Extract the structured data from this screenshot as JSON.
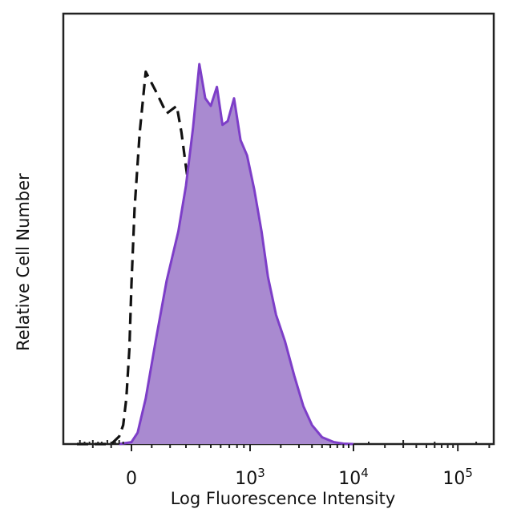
{
  "chart_data": {
    "type": "area",
    "xlabel": "Log Fluorescence Intensity",
    "ylabel": "Relative Cell Number",
    "x_scale": "biexponential (linear near 0, logarithmic above 10^2)",
    "x_ticks": [
      {
        "value": 0,
        "base": "0",
        "exp": ""
      },
      {
        "value": 1000,
        "base": "10",
        "exp": "3"
      },
      {
        "value": 10000,
        "base": "10",
        "exp": "4"
      },
      {
        "value": 100000,
        "base": "10",
        "exp": "5"
      }
    ],
    "xlim": [
      -300,
      250000
    ],
    "ylim": [
      0,
      1
    ],
    "grid": false,
    "legend": "none",
    "series": [
      {
        "style": "dashed",
        "color": "#111111",
        "fill": "none",
        "x": [
          -300,
          -180,
          -100,
          -60,
          -40,
          -25,
          -10,
          0,
          15,
          40,
          70,
          120,
          180,
          240,
          270,
          300,
          330,
          380,
          450,
          550,
          700,
          900,
          1200,
          1700,
          2300,
          3000,
          4000,
          6000
        ],
        "y": [
          0.0,
          0.0,
          0.0,
          0.02,
          0.05,
          0.12,
          0.25,
          0.42,
          0.62,
          0.82,
          0.98,
          0.93,
          0.87,
          0.89,
          0.82,
          0.73,
          0.65,
          0.55,
          0.44,
          0.33,
          0.22,
          0.18,
          0.11,
          0.04,
          0.015,
          0.012,
          0.004,
          0.0
        ]
      },
      {
        "style": "solid-filled",
        "color": "#7d3ec8",
        "fill": "#a98ad0",
        "x": [
          -60,
          0,
          30,
          70,
          120,
          180,
          250,
          300,
          350,
          400,
          450,
          500,
          560,
          620,
          680,
          760,
          850,
          950,
          1100,
          1300,
          1500,
          1800,
          2200,
          2700,
          3300,
          4000,
          5000,
          6500,
          8000,
          10000
        ],
        "y": [
          0.0,
          0.005,
          0.03,
          0.12,
          0.27,
          0.43,
          0.56,
          0.68,
          0.83,
          1.0,
          0.91,
          0.89,
          0.94,
          0.84,
          0.85,
          0.91,
          0.8,
          0.76,
          0.67,
          0.56,
          0.44,
          0.34,
          0.27,
          0.18,
          0.1,
          0.05,
          0.018,
          0.005,
          0.001,
          0.0
        ]
      }
    ]
  }
}
